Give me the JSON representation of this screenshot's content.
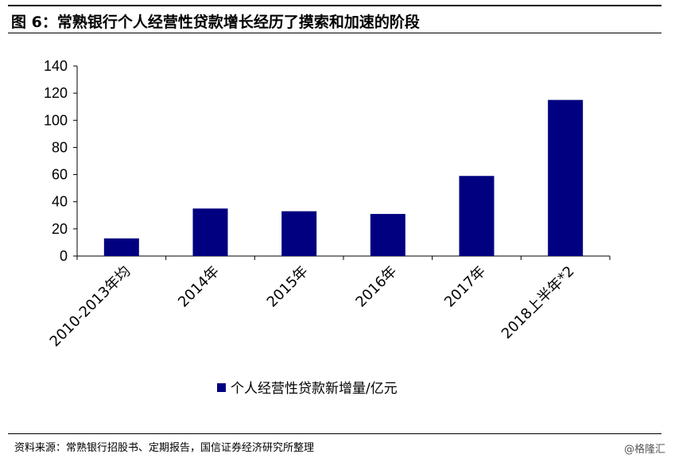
{
  "header": {
    "title": "图 6：常熟银行个人经营性贷款增长经历了摸索和加速的阶段"
  },
  "footer": {
    "source": "资料来源：常熟银行招股书、定期报告，国信证券经济研究所整理",
    "watermark": "@格隆汇"
  },
  "chart_data": {
    "type": "bar",
    "categories": [
      "2010-2013年均",
      "2014年",
      "2015年",
      "2016年",
      "2017年",
      "2018上半年*2"
    ],
    "series": [
      {
        "name": "个人经营性贷款新增量/亿元",
        "values": [
          13,
          35,
          33,
          31,
          59,
          115
        ],
        "color": "#000080"
      }
    ],
    "ylim": [
      0,
      140
    ],
    "yticks": [
      0,
      20,
      40,
      60,
      80,
      100,
      120,
      140
    ],
    "legend_position": "bottom",
    "grid": false
  }
}
